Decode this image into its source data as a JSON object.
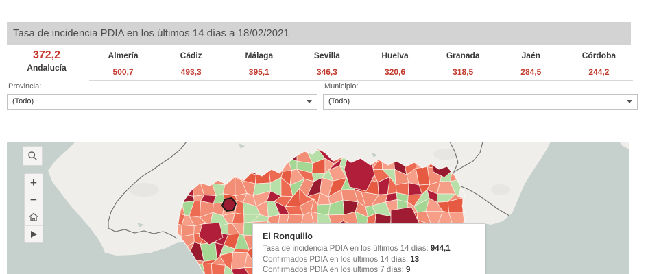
{
  "title": "Tasa de incidencia PDIA en los últimos 14 días a 18/02/2021",
  "summary": {
    "region_value": "372,2",
    "region_name": "Andalucía",
    "provinces": [
      {
        "name": "Almería",
        "value": "500,7"
      },
      {
        "name": "Cádiz",
        "value": "493,3"
      },
      {
        "name": "Málaga",
        "value": "395,1"
      },
      {
        "name": "Sevilla",
        "value": "346,3"
      },
      {
        "name": "Huelva",
        "value": "320,6"
      },
      {
        "name": "Granada",
        "value": "318,5"
      },
      {
        "name": "Jaén",
        "value": "284,5"
      },
      {
        "name": "Córdoba",
        "value": "244,2"
      }
    ]
  },
  "filters": {
    "provincia_label": "Provincia:",
    "provincia_value": "(Todo)",
    "municipio_label": "Municipio:",
    "municipio_value": "(Todo)"
  },
  "map": {
    "controls": {
      "search": "search",
      "zoom_in": "+",
      "zoom_out": "−",
      "home": "home",
      "pan": "pan"
    },
    "tooltip": {
      "title": "El Ronquillo",
      "lines": [
        {
          "label": "Tasa de incidencia PDIA en los últimos 14 días: ",
          "value": "944,1"
        },
        {
          "label": "Confirmados PDIA en los últimos 14 días: ",
          "value": "13"
        },
        {
          "label": "Confirmados PDIA en los últimos 7 días: ",
          "value": "9"
        }
      ]
    },
    "colors": {
      "sea": "#c6d1ce",
      "land": "#efeeeb",
      "land_patch": "#e8e6e3",
      "border": "#6f6f6f",
      "palette": [
        "#f79e88",
        "#f28d76",
        "#ee6b53",
        "#e65a41",
        "#b11e39",
        "#971a2e",
        "#b7e0a8",
        "#a3d793"
      ],
      "cell_border": "#fbe9df",
      "highlight_fill": "#9b1b30",
      "highlight_stroke": "#1a1a1a"
    }
  }
}
